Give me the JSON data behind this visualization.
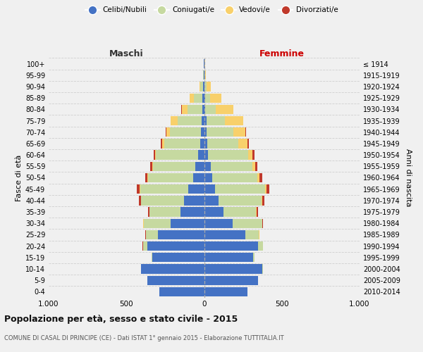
{
  "age_groups": [
    "100+",
    "95-99",
    "90-94",
    "85-89",
    "80-84",
    "75-79",
    "70-74",
    "65-69",
    "60-64",
    "55-59",
    "50-54",
    "45-49",
    "40-44",
    "35-39",
    "30-34",
    "25-29",
    "20-24",
    "15-19",
    "10-14",
    "5-9",
    "0-4"
  ],
  "birth_years": [
    "≤ 1914",
    "1915-1919",
    "1920-1924",
    "1925-1929",
    "1930-1934",
    "1935-1939",
    "1940-1944",
    "1945-1949",
    "1950-1954",
    "1955-1959",
    "1960-1964",
    "1965-1969",
    "1970-1974",
    "1975-1979",
    "1980-1984",
    "1985-1989",
    "1990-1994",
    "1995-1999",
    "2000-2004",
    "2005-2009",
    "2010-2014"
  ],
  "male_celibi": [
    2,
    2,
    5,
    10,
    12,
    18,
    22,
    25,
    40,
    55,
    70,
    100,
    130,
    150,
    215,
    295,
    365,
    335,
    405,
    365,
    290
  ],
  "male_coniugati": [
    1,
    3,
    18,
    55,
    95,
    150,
    200,
    230,
    270,
    275,
    290,
    310,
    275,
    200,
    175,
    80,
    28,
    5,
    2,
    1,
    0
  ],
  "male_vedovi": [
    0,
    1,
    8,
    28,
    38,
    48,
    22,
    15,
    5,
    5,
    3,
    3,
    2,
    2,
    1,
    1,
    1,
    0,
    0,
    0,
    0
  ],
  "male_divorziati": [
    0,
    0,
    0,
    0,
    1,
    1,
    4,
    10,
    8,
    10,
    14,
    18,
    14,
    8,
    3,
    2,
    1,
    0,
    0,
    0,
    0
  ],
  "female_celibi": [
    2,
    2,
    4,
    8,
    8,
    14,
    18,
    20,
    26,
    42,
    52,
    72,
    92,
    125,
    185,
    265,
    345,
    315,
    375,
    345,
    280
  ],
  "female_coniugati": [
    1,
    3,
    10,
    32,
    68,
    118,
    170,
    200,
    258,
    270,
    290,
    320,
    278,
    210,
    188,
    88,
    32,
    7,
    2,
    1,
    0
  ],
  "female_vedovi": [
    2,
    5,
    28,
    72,
    112,
    118,
    78,
    58,
    28,
    18,
    14,
    9,
    5,
    3,
    2,
    1,
    1,
    0,
    0,
    0,
    0
  ],
  "female_divorziati": [
    0,
    0,
    1,
    1,
    2,
    2,
    5,
    8,
    12,
    14,
    20,
    18,
    14,
    10,
    5,
    3,
    2,
    1,
    0,
    0,
    0
  ],
  "color_celibi": "#4472c4",
  "color_coniugati": "#c6d9a0",
  "color_vedovi": "#f8d06b",
  "color_divorziati": "#c0392b",
  "xlim": 1000,
  "title": "Popolazione per età, sesso e stato civile - 2015",
  "subtitle": "COMUNE DI CASAL DI PRINCIPE (CE) - Dati ISTAT 1° gennaio 2015 - Elaborazione TUTTITALIA.IT",
  "xlabel_left": "Maschi",
  "xlabel_right": "Femmine",
  "ylabel_left": "Fasce di età",
  "ylabel_right": "Anni di nascita",
  "bg_color": "#f0f0f0",
  "grid_color": "#cccccc",
  "legend_labels": [
    "Celibi/Nubili",
    "Coniugati/e",
    "Vedovi/e",
    "Divorziati/e"
  ]
}
